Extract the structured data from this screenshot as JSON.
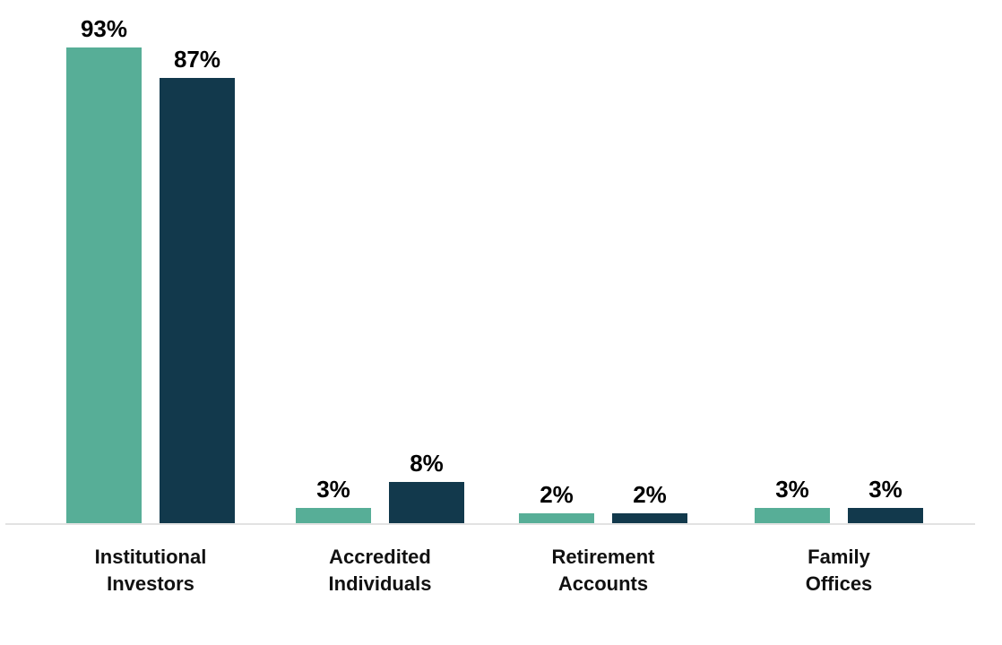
{
  "chart_data": {
    "type": "bar",
    "title": "",
    "xlabel": "",
    "ylabel": "",
    "categories": [
      "Institutional\nInvestors",
      "Accredited\nIndividuals",
      "Retirement\nAccounts",
      "Family\nOffices"
    ],
    "series": [
      {
        "name": "series-teal",
        "color": "#57AE97",
        "values": [
          93,
          3,
          2,
          3
        ],
        "labels": [
          "93%",
          "3%",
          "2%",
          "3%"
        ]
      },
      {
        "name": "series-navy",
        "color": "#12394C",
        "values": [
          87,
          8,
          2,
          3
        ],
        "labels": [
          "87%",
          "8%",
          "2%",
          "3%"
        ]
      }
    ],
    "ylim": [
      0,
      100
    ],
    "grid": false,
    "legend": false,
    "value_label_color": "#000000",
    "category_label_color": "#111111",
    "axis_line_color": "#E2E2E2",
    "background_color": "#FFFFFF"
  }
}
